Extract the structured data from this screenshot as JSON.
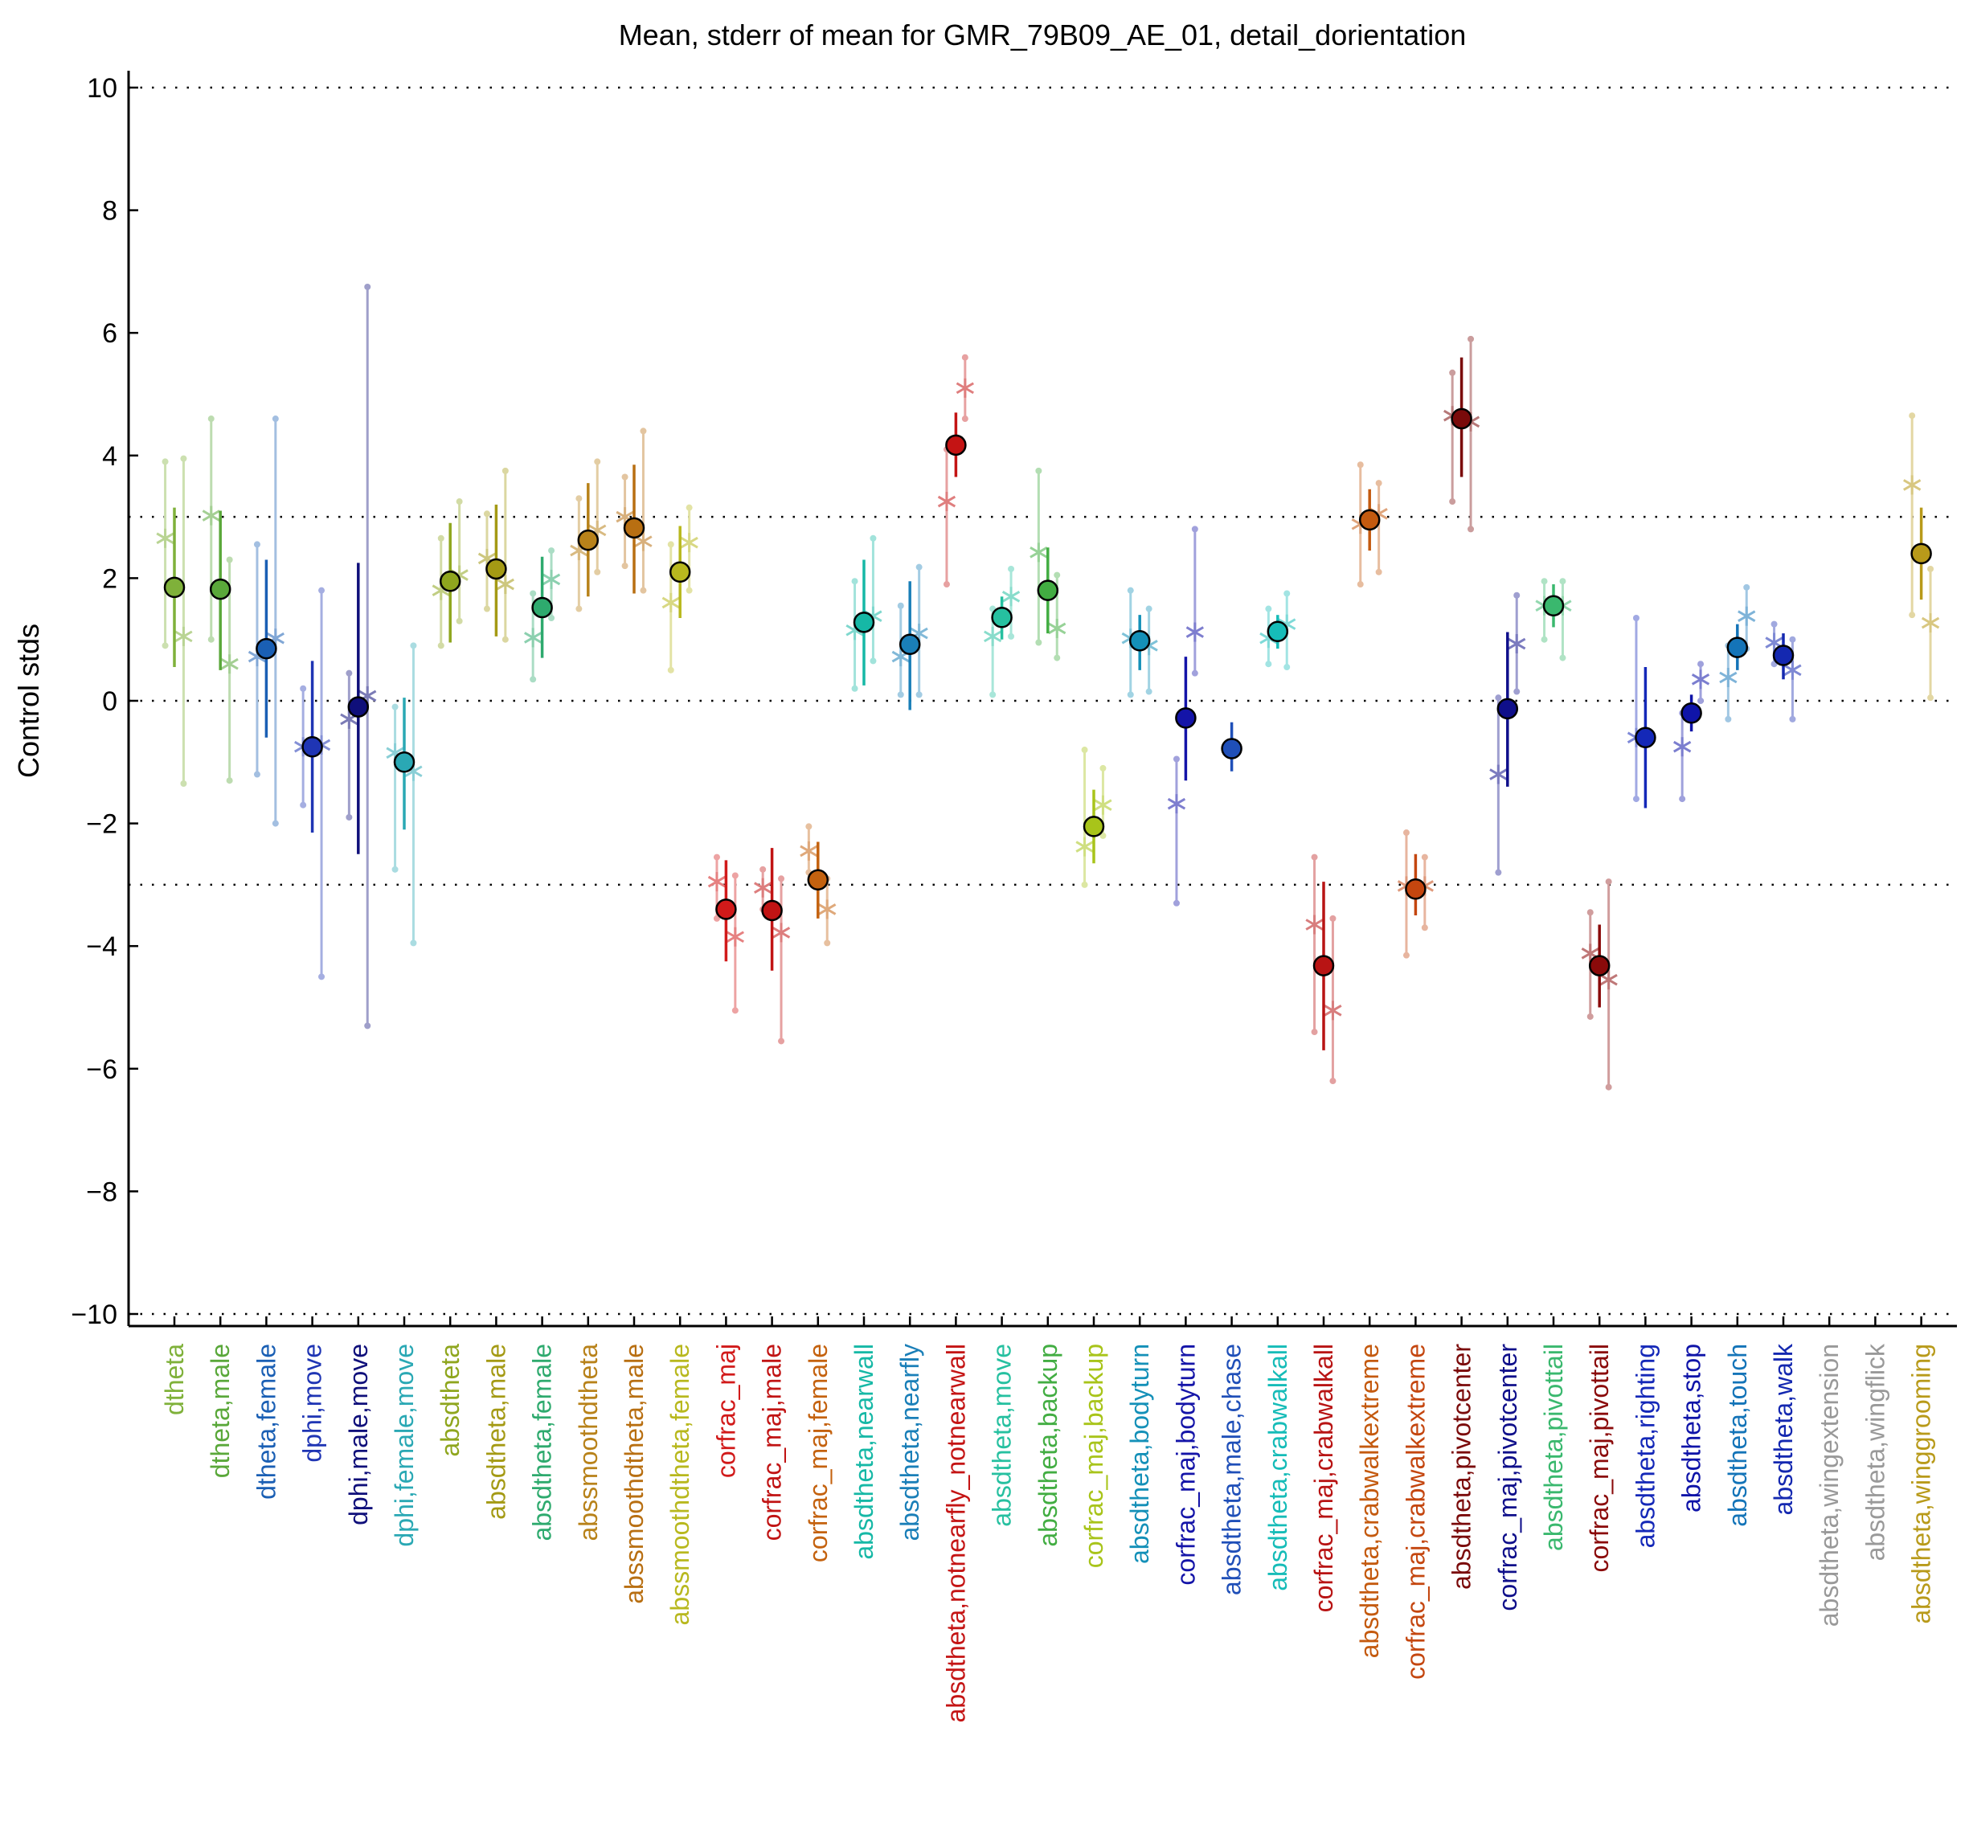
{
  "chart_data": {
    "type": "scatter",
    "title": "Mean, stderr of mean for GMR_79B09_AE_01, detail_dorientation",
    "xlabel": "",
    "ylabel": "Control stds",
    "ylim": [
      -10.2,
      10.2
    ],
    "yticks": [
      -10,
      -8,
      -6,
      -4,
      -2,
      0,
      2,
      4,
      6,
      8,
      10
    ],
    "yticklabels": [
      "−10",
      "−8",
      "−6",
      "−4",
      "−2",
      "0",
      "2",
      "4",
      "6",
      "8",
      "10"
    ],
    "reference_lines": [
      -10,
      -3,
      0,
      3,
      10
    ],
    "grid": false,
    "legend": "none",
    "categories": [
      {
        "label": "dtheta",
        "color": "#7fb13a",
        "mean": 1.85,
        "ci": [
          0.55,
          3.15
        ],
        "sub": [
          [
            -0.2,
            2.65,
            0.9,
            3.9
          ],
          [
            0.2,
            1.05,
            -1.35,
            3.95
          ]
        ]
      },
      {
        "label": "dtheta,male",
        "color": "#5aa83a",
        "mean": 1.82,
        "ci": [
          0.5,
          3.1
        ],
        "sub": [
          [
            -0.2,
            3.02,
            1.0,
            4.6
          ],
          [
            0.2,
            0.6,
            -1.3,
            2.3
          ]
        ]
      },
      {
        "label": "dtheta,female",
        "color": "#1a5fb4",
        "mean": 0.85,
        "ci": [
          -0.6,
          2.3
        ],
        "sub": [
          [
            -0.2,
            0.72,
            -1.2,
            2.55
          ],
          [
            0.2,
            1.02,
            -2.0,
            4.6
          ]
        ]
      },
      {
        "label": "dphi,move",
        "color": "#1f35b4",
        "mean": -0.75,
        "ci": [
          -2.15,
          0.65
        ],
        "sub": [
          [
            -0.2,
            -0.75,
            -1.7,
            0.2
          ],
          [
            0.2,
            -0.72,
            -4.5,
            1.8
          ]
        ]
      },
      {
        "label": "dphi,male,move",
        "color": "#0f0f7a",
        "mean": -0.1,
        "ci": [
          -2.5,
          2.25
        ],
        "sub": [
          [
            -0.2,
            -0.3,
            -1.9,
            0.45
          ],
          [
            0.2,
            0.08,
            -5.3,
            6.75
          ]
        ]
      },
      {
        "label": "dphi,female,move",
        "color": "#2aa8b4",
        "mean": -1.0,
        "ci": [
          -2.1,
          0.05
        ],
        "sub": [
          [
            -0.2,
            -0.85,
            -2.75,
            -0.1
          ],
          [
            0.2,
            -1.15,
            -3.95,
            0.9
          ]
        ]
      },
      {
        "label": "absdtheta",
        "color": "#8fa61e",
        "mean": 1.95,
        "ci": [
          0.95,
          2.9
        ],
        "sub": [
          [
            -0.2,
            1.8,
            0.9,
            2.65
          ],
          [
            0.2,
            2.05,
            1.3,
            3.25
          ]
        ]
      },
      {
        "label": "absdtheta,male",
        "color": "#a49a14",
        "mean": 2.15,
        "ci": [
          1.05,
          3.2
        ],
        "sub": [
          [
            -0.2,
            2.32,
            1.5,
            3.05
          ],
          [
            0.2,
            1.9,
            1.0,
            3.75
          ]
        ]
      },
      {
        "label": "absdtheta,female",
        "color": "#2eaa6e",
        "mean": 1.52,
        "ci": [
          0.7,
          2.35
        ],
        "sub": [
          [
            -0.2,
            1.03,
            0.35,
            1.75
          ],
          [
            0.2,
            1.98,
            1.35,
            2.45
          ]
        ]
      },
      {
        "label": "abssmoothdtheta",
        "color": "#b8821a",
        "mean": 2.62,
        "ci": [
          1.7,
          3.55
        ],
        "sub": [
          [
            -0.2,
            2.45,
            1.5,
            3.3
          ],
          [
            0.2,
            2.78,
            2.1,
            3.9
          ]
        ]
      },
      {
        "label": "abssmoothdtheta,male",
        "color": "#b86f12",
        "mean": 2.82,
        "ci": [
          1.75,
          3.85
        ],
        "sub": [
          [
            -0.2,
            3.0,
            2.2,
            3.65
          ],
          [
            0.2,
            2.6,
            1.8,
            4.4
          ]
        ]
      },
      {
        "label": "abssmoothdtheta,female",
        "color": "#b8b81e",
        "mean": 2.1,
        "ci": [
          1.35,
          2.85
        ],
        "sub": [
          [
            -0.2,
            1.6,
            0.5,
            2.55
          ],
          [
            0.2,
            2.58,
            1.8,
            3.15
          ]
        ]
      },
      {
        "label": "corfrac_maj",
        "color": "#d11a1a",
        "mean": -3.4,
        "ci": [
          -4.25,
          -2.6
        ],
        "sub": [
          [
            -0.2,
            -2.95,
            -3.55,
            -2.55
          ],
          [
            0.2,
            -3.85,
            -5.05,
            -2.85
          ]
        ]
      },
      {
        "label": "corfrac_maj,male",
        "color": "#c11414",
        "mean": -3.42,
        "ci": [
          -4.4,
          -2.4
        ],
        "sub": [
          [
            -0.2,
            -3.05,
            -3.4,
            -2.75
          ],
          [
            0.2,
            -3.78,
            -5.55,
            -2.9
          ]
        ]
      },
      {
        "label": "corfrac_maj,female",
        "color": "#c4620f",
        "mean": -2.92,
        "ci": [
          -3.55,
          -2.3
        ],
        "sub": [
          [
            -0.2,
            -2.45,
            -2.8,
            -2.05
          ],
          [
            0.2,
            -3.4,
            -3.95,
            -2.9
          ]
        ]
      },
      {
        "label": "absdtheta,nearwall",
        "color": "#16b8a6",
        "mean": 1.28,
        "ci": [
          0.25,
          2.3
        ],
        "sub": [
          [
            -0.2,
            1.15,
            0.2,
            1.95
          ],
          [
            0.2,
            1.38,
            0.65,
            2.65
          ]
        ]
      },
      {
        "label": "absdtheta,nearfly",
        "color": "#1a7fb8",
        "mean": 0.92,
        "ci": [
          -0.15,
          1.95
        ],
        "sub": [
          [
            -0.2,
            0.72,
            0.1,
            1.55
          ],
          [
            0.2,
            1.1,
            0.1,
            2.18
          ]
        ]
      },
      {
        "label": "absdtheta,notnearfly_notnearwall",
        "color": "#c41414",
        "mean": 4.17,
        "ci": [
          3.65,
          4.7
        ],
        "sub": [
          [
            -0.2,
            3.25,
            1.9,
            4.1
          ],
          [
            0.2,
            5.1,
            4.6,
            5.6
          ]
        ]
      },
      {
        "label": "absdtheta,move",
        "color": "#26c0a0",
        "mean": 1.36,
        "ci": [
          1.0,
          1.7
        ],
        "sub": [
          [
            -0.2,
            1.05,
            0.1,
            1.5
          ],
          [
            0.2,
            1.7,
            1.05,
            2.15
          ]
        ]
      },
      {
        "label": "absdtheta,backup",
        "color": "#42ad42",
        "mean": 1.8,
        "ci": [
          1.1,
          2.5
        ],
        "sub": [
          [
            -0.2,
            2.42,
            0.95,
            3.75
          ],
          [
            0.2,
            1.18,
            0.7,
            2.05
          ]
        ]
      },
      {
        "label": "corfrac_maj,backup",
        "color": "#a8c41a",
        "mean": -2.05,
        "ci": [
          -2.65,
          -1.45
        ],
        "sub": [
          [
            -0.2,
            -2.38,
            -3.0,
            -0.8
          ],
          [
            0.2,
            -1.7,
            -2.2,
            -1.1
          ]
        ]
      },
      {
        "label": "absdtheta,bodyturn",
        "color": "#1490b8",
        "mean": 0.98,
        "ci": [
          0.5,
          1.4
        ],
        "sub": [
          [
            -0.2,
            1.02,
            0.1,
            1.8
          ],
          [
            0.2,
            0.9,
            0.15,
            1.5
          ]
        ]
      },
      {
        "label": "corfrac_maj,bodyturn",
        "color": "#1414a8",
        "mean": -0.28,
        "ci": [
          -1.3,
          0.72
        ],
        "sub": [
          [
            -0.2,
            -1.68,
            -3.3,
            -0.95
          ],
          [
            0.2,
            1.12,
            0.45,
            2.8
          ]
        ]
      },
      {
        "label": "absdtheta,male,chase",
        "color": "#1f4fb8",
        "mean": -0.78,
        "ci": [
          -1.15,
          -0.35
        ],
        "sub": []
      },
      {
        "label": "absdtheta,crabwalkall",
        "color": "#16bcb8",
        "mean": 1.13,
        "ci": [
          0.85,
          1.4
        ],
        "sub": [
          [
            -0.2,
            1.02,
            0.6,
            1.5
          ],
          [
            0.2,
            1.25,
            0.55,
            1.75
          ]
        ]
      },
      {
        "label": "corfrac_maj,crabwalkall",
        "color": "#b81414",
        "mean": -4.32,
        "ci": [
          -5.7,
          -2.95
        ],
        "sub": [
          [
            -0.2,
            -3.65,
            -5.4,
            -2.55
          ],
          [
            0.2,
            -5.05,
            -6.2,
            -3.55
          ]
        ]
      },
      {
        "label": "absdtheta,crabwalkextreme",
        "color": "#c45a0f",
        "mean": 2.95,
        "ci": [
          2.45,
          3.45
        ],
        "sub": [
          [
            -0.2,
            2.88,
            1.9,
            3.85
          ],
          [
            0.2,
            3.05,
            2.1,
            3.55
          ]
        ]
      },
      {
        "label": "corfrac_maj,crabwalkextreme",
        "color": "#c4460f",
        "mean": -3.07,
        "ci": [
          -3.5,
          -2.5
        ],
        "sub": [
          [
            -0.2,
            -3.02,
            -4.15,
            -2.15
          ],
          [
            0.2,
            -3.02,
            -3.7,
            -2.55
          ]
        ]
      },
      {
        "label": "absdtheta,pivotcenter",
        "color": "#7a0a0a",
        "mean": 4.6,
        "ci": [
          3.65,
          5.6
        ],
        "sub": [
          [
            -0.2,
            4.65,
            3.25,
            5.35
          ],
          [
            0.2,
            4.55,
            2.8,
            5.9
          ]
        ]
      },
      {
        "label": "corfrac_maj,pivotcenter",
        "color": "#0f0f8a",
        "mean": -0.13,
        "ci": [
          -1.4,
          1.12
        ],
        "sub": [
          [
            -0.2,
            -1.2,
            -2.8,
            0.05
          ],
          [
            0.2,
            0.93,
            0.15,
            1.72
          ]
        ]
      },
      {
        "label": "absdtheta,pivottail",
        "color": "#3ab86e",
        "mean": 1.55,
        "ci": [
          1.2,
          1.9
        ],
        "sub": [
          [
            -0.2,
            1.55,
            1.0,
            1.95
          ],
          [
            0.2,
            1.55,
            0.7,
            1.95
          ]
        ]
      },
      {
        "label": "corfrac_maj,pivottail",
        "color": "#8a0a0a",
        "mean": -4.32,
        "ci": [
          -5.0,
          -3.65
        ],
        "sub": [
          [
            -0.2,
            -4.12,
            -5.15,
            -3.45
          ],
          [
            0.2,
            -4.55,
            -6.3,
            -2.95
          ]
        ]
      },
      {
        "label": "absdtheta,righting",
        "color": "#1428b8",
        "mean": -0.6,
        "ci": [
          -1.75,
          0.55
        ],
        "sub": [
          [
            -0.2,
            -0.6,
            -1.6,
            1.35
          ]
        ]
      },
      {
        "label": "absdtheta,stop",
        "color": "#0f14a8",
        "mean": -0.2,
        "ci": [
          -0.5,
          0.1
        ],
        "sub": [
          [
            -0.2,
            -0.75,
            -1.6,
            -0.2
          ],
          [
            0.2,
            0.35,
            0.0,
            0.6
          ]
        ]
      },
      {
        "label": "absdtheta,touch",
        "color": "#1474b8",
        "mean": 0.87,
        "ci": [
          0.5,
          1.25
        ],
        "sub": [
          [
            -0.2,
            0.38,
            -0.3,
            0.9
          ],
          [
            0.2,
            1.38,
            0.85,
            1.85
          ]
        ]
      },
      {
        "label": "absdtheta,walk",
        "color": "#1428b0",
        "mean": 0.74,
        "ci": [
          0.35,
          1.1
        ],
        "sub": [
          [
            -0.2,
            0.95,
            0.6,
            1.25
          ],
          [
            0.2,
            0.5,
            -0.3,
            1.0
          ]
        ]
      },
      {
        "label": "absdtheta,wingextension",
        "color": "#999999",
        "mean": null,
        "ci": null,
        "sub": []
      },
      {
        "label": "absdtheta,wingflick",
        "color": "#999999",
        "mean": null,
        "ci": null,
        "sub": []
      },
      {
        "label": "absdtheta,winggrooming",
        "color": "#b89a1a",
        "mean": 2.4,
        "ci": [
          1.65,
          3.15
        ],
        "sub": [
          [
            -0.2,
            3.52,
            1.4,
            4.65
          ],
          [
            0.2,
            1.27,
            0.05,
            2.15
          ]
        ]
      }
    ]
  }
}
